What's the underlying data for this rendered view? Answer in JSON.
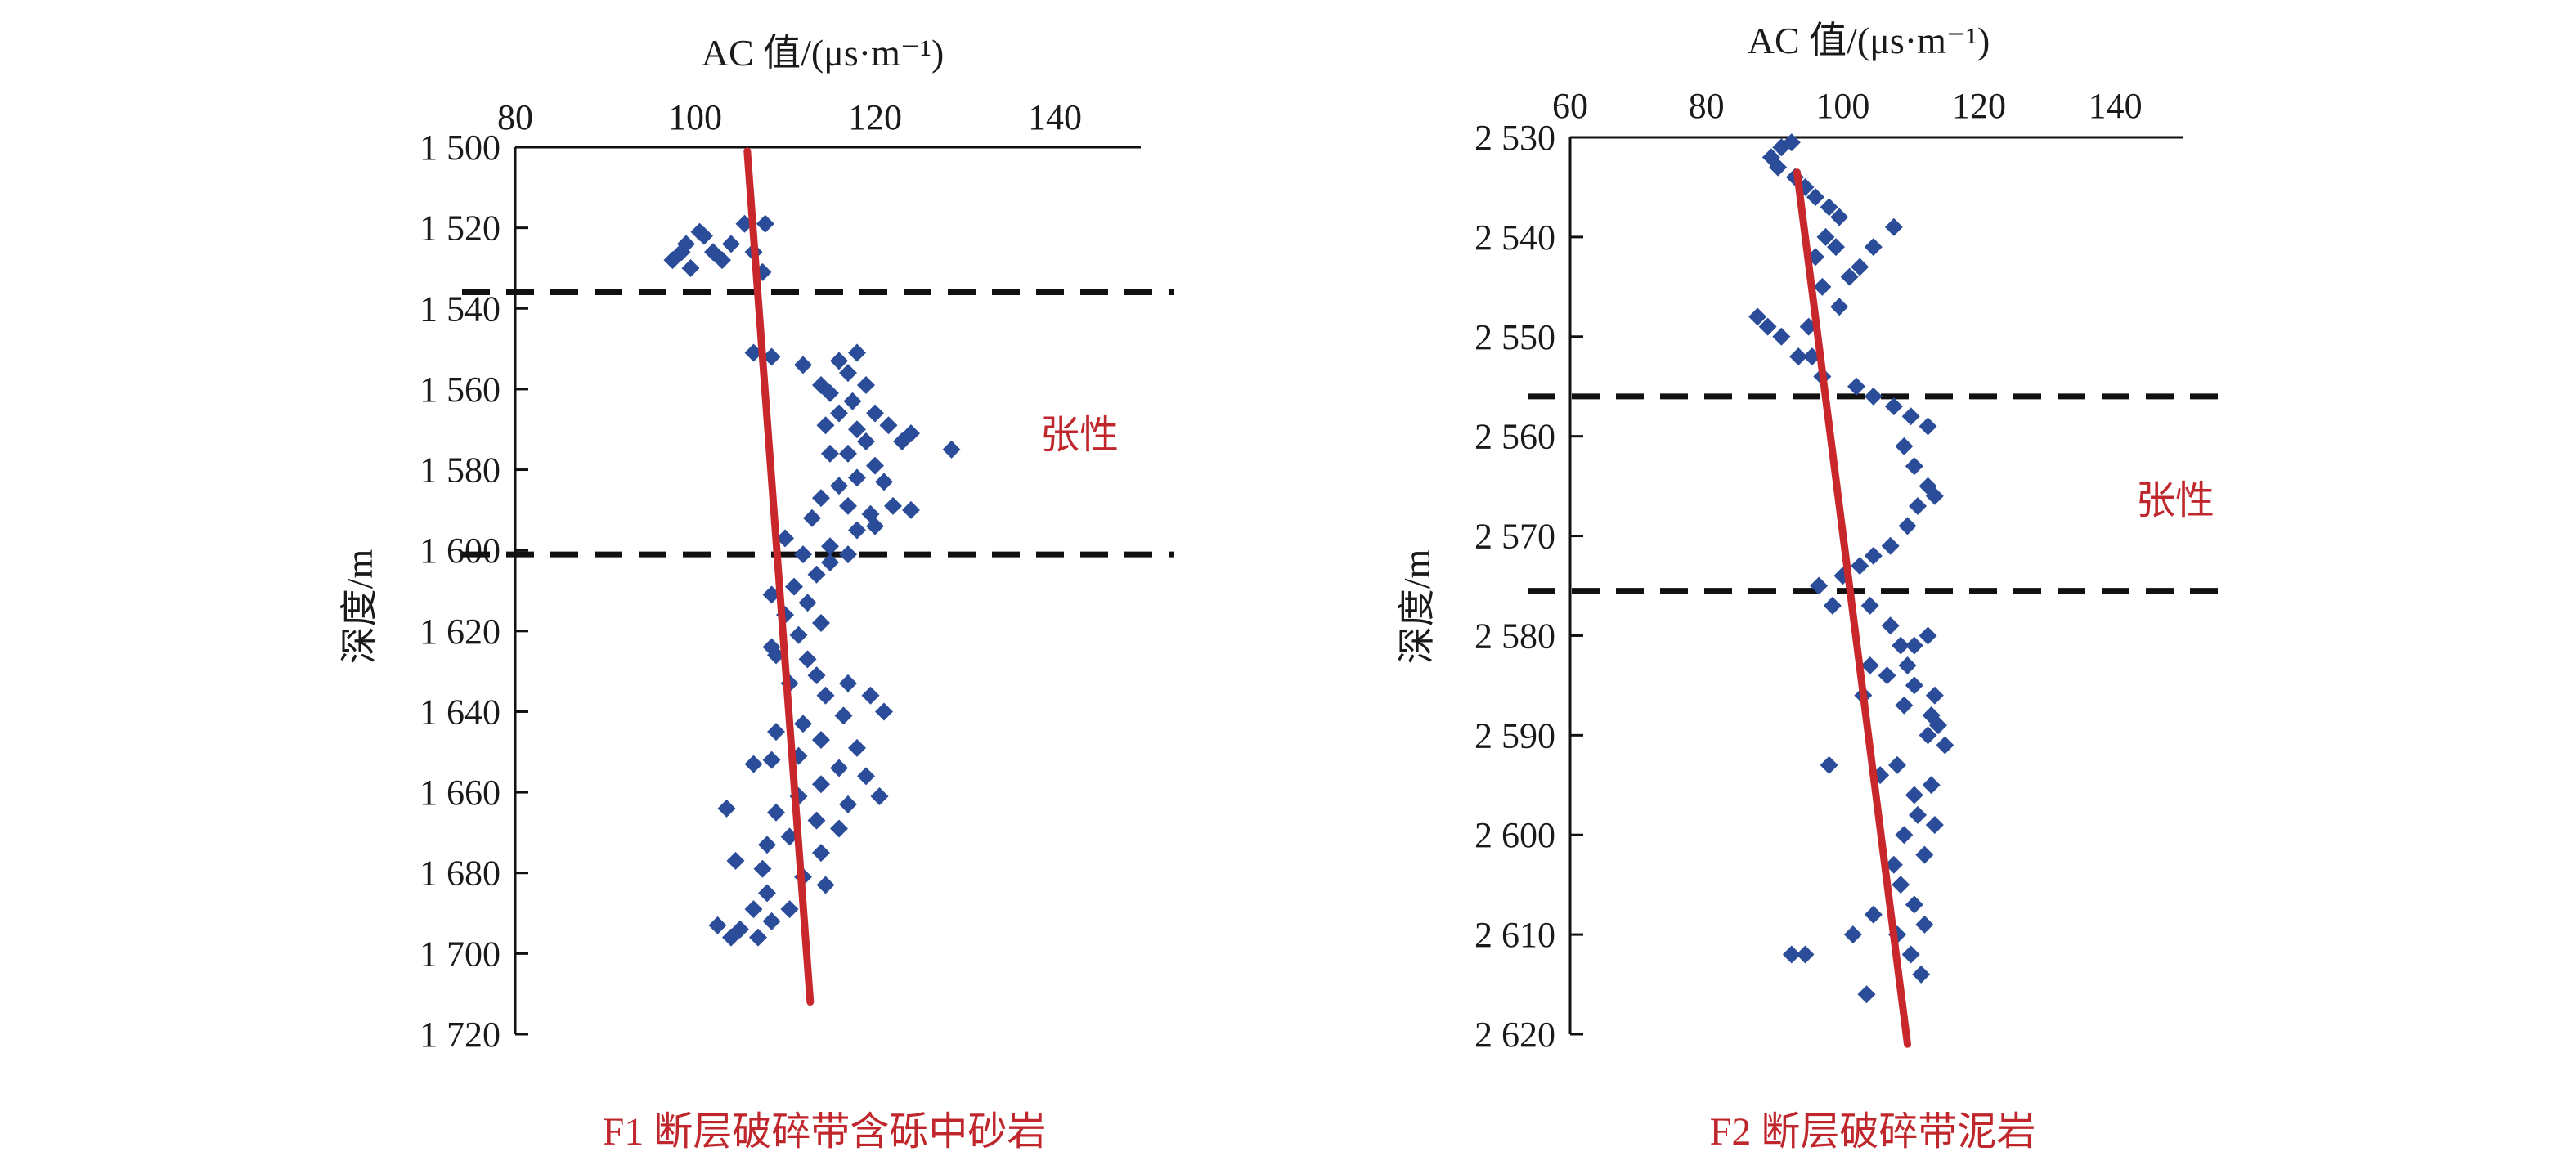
{
  "chart_data": [
    {
      "type": "scatter",
      "xlabel": "AC 值/(μs·m⁻¹)",
      "ylabel": "深度/m",
      "caption": "F1 断层破碎带含砾中砂岩",
      "zone_label": "张性",
      "xlim": [
        80,
        150
      ],
      "ylim": [
        1500,
        1720
      ],
      "x_ticks": [
        80,
        100,
        120,
        140
      ],
      "x_tick_labels": [
        "80",
        "100",
        "120",
        "140"
      ],
      "y_ticks": [
        1500,
        1520,
        1540,
        1560,
        1580,
        1600,
        1620,
        1640,
        1660,
        1680,
        1700,
        1720
      ],
      "y_tick_labels": [
        "1 500",
        "1 520",
        "1 540",
        "1 560",
        "1 580",
        "1 600",
        "1 620",
        "1 640",
        "1 660",
        "1 680",
        "1 700",
        "1 720"
      ],
      "boundary_depths": [
        1536,
        1601
      ],
      "trend_line": [
        [
          105.8,
          1501
        ],
        [
          112.8,
          1712
        ]
      ],
      "point_color": "#2b4c99",
      "trend_color": "#c8282c",
      "points": [
        [
          97.5,
          1528
        ],
        [
          99,
          1524
        ],
        [
          100.5,
          1521
        ],
        [
          102,
          1526
        ],
        [
          99.5,
          1530
        ],
        [
          101,
          1522
        ],
        [
          104,
          1524
        ],
        [
          105.5,
          1519
        ],
        [
          107.8,
          1519
        ],
        [
          106.5,
          1526
        ],
        [
          107.5,
          1531
        ],
        [
          98.5,
          1526
        ],
        [
          103,
          1528
        ],
        [
          106.5,
          1551
        ],
        [
          108.5,
          1552
        ],
        [
          112,
          1554
        ],
        [
          114,
          1559
        ],
        [
          116,
          1553
        ],
        [
          118,
          1551
        ],
        [
          117,
          1556
        ],
        [
          119,
          1559
        ],
        [
          115,
          1561
        ],
        [
          117.5,
          1563
        ],
        [
          120,
          1566
        ],
        [
          116,
          1566
        ],
        [
          114.5,
          1569
        ],
        [
          118,
          1570
        ],
        [
          121.5,
          1569
        ],
        [
          119,
          1573
        ],
        [
          117,
          1576
        ],
        [
          123,
          1573
        ],
        [
          124,
          1571
        ],
        [
          128.5,
          1575
        ],
        [
          115,
          1576
        ],
        [
          120,
          1579
        ],
        [
          118,
          1582
        ],
        [
          121,
          1583
        ],
        [
          116,
          1584
        ],
        [
          114,
          1587
        ],
        [
          117,
          1589
        ],
        [
          119.5,
          1591
        ],
        [
          122,
          1589
        ],
        [
          124,
          1590
        ],
        [
          113,
          1592
        ],
        [
          118,
          1595
        ],
        [
          120,
          1594
        ],
        [
          115,
          1599
        ],
        [
          110,
          1597
        ],
        [
          112,
          1601
        ],
        [
          115,
          1603
        ],
        [
          117,
          1601
        ],
        [
          113.5,
          1606
        ],
        [
          111,
          1609
        ],
        [
          108.5,
          1611
        ],
        [
          112.5,
          1613
        ],
        [
          110,
          1616
        ],
        [
          114,
          1618
        ],
        [
          111.5,
          1621
        ],
        [
          108.5,
          1624
        ],
        [
          112.5,
          1627
        ],
        [
          109,
          1626
        ],
        [
          113.5,
          1631
        ],
        [
          110.5,
          1633
        ],
        [
          114.5,
          1636
        ],
        [
          117,
          1633
        ],
        [
          119.5,
          1636
        ],
        [
          121,
          1640
        ],
        [
          116.5,
          1641
        ],
        [
          112,
          1643
        ],
        [
          109,
          1645
        ],
        [
          114,
          1647
        ],
        [
          118,
          1649
        ],
        [
          111.5,
          1651
        ],
        [
          108.5,
          1652
        ],
        [
          106.5,
          1653
        ],
        [
          116,
          1654
        ],
        [
          119,
          1656
        ],
        [
          114,
          1658
        ],
        [
          111.5,
          1661
        ],
        [
          120.5,
          1661
        ],
        [
          117,
          1663
        ],
        [
          103.5,
          1664
        ],
        [
          109,
          1665
        ],
        [
          113.5,
          1667
        ],
        [
          116,
          1669
        ],
        [
          110.5,
          1671
        ],
        [
          108,
          1673
        ],
        [
          114,
          1675
        ],
        [
          104.5,
          1677
        ],
        [
          107.5,
          1679
        ],
        [
          112,
          1681
        ],
        [
          114.5,
          1683
        ],
        [
          108,
          1685
        ],
        [
          106.5,
          1689
        ],
        [
          110.5,
          1689
        ],
        [
          108.5,
          1692
        ],
        [
          102.5,
          1693
        ],
        [
          105,
          1694
        ],
        [
          107,
          1696
        ],
        [
          104,
          1696
        ]
      ]
    },
    {
      "type": "scatter",
      "xlabel": "AC 值/(μs·m⁻¹)",
      "ylabel": "深度/m",
      "caption": "F2 断层破碎带泥岩",
      "zone_label": "张性",
      "xlim": [
        60,
        150
      ],
      "ylim": [
        2530,
        2620
      ],
      "x_ticks": [
        60,
        80,
        100,
        120,
        140
      ],
      "x_tick_labels": [
        "60",
        "80",
        "100",
        "120",
        "140"
      ],
      "y_ticks": [
        2530,
        2540,
        2550,
        2560,
        2570,
        2580,
        2590,
        2600,
        2610,
        2620
      ],
      "y_tick_labels": [
        "2 530",
        "2 540",
        "2 550",
        "2 560",
        "2 570",
        "2 580",
        "2 590",
        "2 600",
        "2 610",
        "2 620"
      ],
      "boundary_depths": [
        2556,
        2575.5
      ],
      "trend_line": [
        [
          93.3,
          2533.5
        ],
        [
          109.5,
          2621
        ]
      ],
      "point_color": "#2b4c99",
      "trend_color": "#c8282c",
      "points": [
        [
          89.5,
          2532
        ],
        [
          91,
          2531
        ],
        [
          92.5,
          2530.5
        ],
        [
          90.5,
          2533
        ],
        [
          93,
          2534
        ],
        [
          94.5,
          2535
        ],
        [
          96,
          2536
        ],
        [
          98,
          2537
        ],
        [
          99.5,
          2538
        ],
        [
          97.5,
          2540
        ],
        [
          96,
          2542
        ],
        [
          99,
          2541
        ],
        [
          101,
          2544
        ],
        [
          97,
          2545
        ],
        [
          99.5,
          2547
        ],
        [
          102.5,
          2543
        ],
        [
          104.5,
          2541
        ],
        [
          107.5,
          2539
        ],
        [
          95,
          2549
        ],
        [
          93.5,
          2552
        ],
        [
          91,
          2550
        ],
        [
          89,
          2549
        ],
        [
          87.5,
          2548
        ],
        [
          95.5,
          2552
        ],
        [
          97,
          2554
        ],
        [
          102,
          2555
        ],
        [
          104.5,
          2556
        ],
        [
          107.5,
          2557
        ],
        [
          110,
          2558
        ],
        [
          112.5,
          2559
        ],
        [
          109,
          2561
        ],
        [
          110.5,
          2563
        ],
        [
          112.5,
          2565
        ],
        [
          111,
          2567
        ],
        [
          113.5,
          2566
        ],
        [
          109.5,
          2569
        ],
        [
          107,
          2571
        ],
        [
          104.5,
          2572
        ],
        [
          102.5,
          2573
        ],
        [
          100,
          2574
        ],
        [
          96.5,
          2575
        ],
        [
          98.5,
          2577
        ],
        [
          104,
          2577
        ],
        [
          107,
          2579
        ],
        [
          108.5,
          2581
        ],
        [
          110.5,
          2581
        ],
        [
          112.5,
          2580
        ],
        [
          104,
          2583
        ],
        [
          106.5,
          2584
        ],
        [
          103,
          2586
        ],
        [
          109.5,
          2583
        ],
        [
          110.5,
          2585
        ],
        [
          109,
          2587
        ],
        [
          113.5,
          2586
        ],
        [
          113,
          2588
        ],
        [
          112.5,
          2590
        ],
        [
          114,
          2589
        ],
        [
          115,
          2591
        ],
        [
          98,
          2593
        ],
        [
          105.5,
          2594
        ],
        [
          108,
          2593
        ],
        [
          110.5,
          2596
        ],
        [
          113,
          2595
        ],
        [
          111,
          2598
        ],
        [
          113.5,
          2599
        ],
        [
          109,
          2600
        ],
        [
          112,
          2602
        ],
        [
          107.5,
          2603
        ],
        [
          108.5,
          2605
        ],
        [
          110.5,
          2607
        ],
        [
          112,
          2609
        ],
        [
          108,
          2610
        ],
        [
          110,
          2612
        ],
        [
          111.5,
          2614
        ],
        [
          104.5,
          2608
        ],
        [
          101.5,
          2610
        ],
        [
          94.5,
          2612
        ],
        [
          92.5,
          2612
        ],
        [
          103.5,
          2616
        ]
      ]
    }
  ]
}
